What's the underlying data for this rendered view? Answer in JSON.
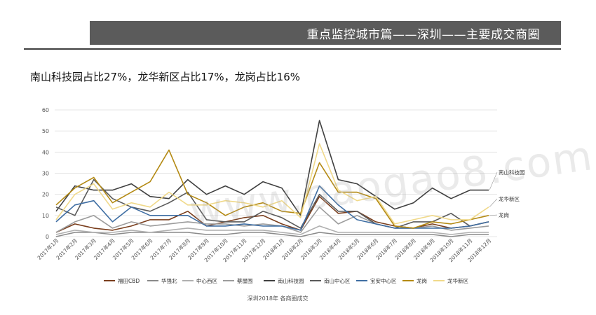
{
  "header": {
    "title": "重点监控城市篇——深圳——主要成交商圈"
  },
  "subtitle": "南山科技园占比27%，龙华新区占比17%，龙岗占比16%",
  "watermark": "www.baogao8.com",
  "chart_data": {
    "type": "line",
    "title": "",
    "caption": "深圳2018年 各商圈成交",
    "xlabel": "",
    "ylabel": "",
    "ylim": [
      0,
      60
    ],
    "yticks": [
      0,
      10,
      20,
      30,
      40,
      50,
      60
    ],
    "grid": true,
    "legend_position": "bottom",
    "categories": [
      "2017年1月",
      "2017年2月",
      "2017年3月",
      "2017年4月",
      "2017年5月",
      "2017年6月",
      "2017年7月",
      "2017年8月",
      "2017年9月",
      "2017年10月",
      "2017年11月",
      "2017年12月",
      "2018年1月",
      "2018年2月",
      "2018年3月",
      "2018年4月",
      "2018年5月",
      "2018年6月",
      "2018年7月",
      "2018年8月",
      "2018年9月",
      "2018年10月",
      "2018年11月",
      "2018年12月"
    ],
    "series": [
      {
        "name": "福田CBD",
        "color": "#7a3e1d",
        "values": [
          2,
          6,
          4,
          3,
          5,
          8,
          8,
          12,
          5,
          7,
          9,
          10,
          6,
          3,
          19,
          11,
          12,
          7,
          5,
          4,
          6,
          4,
          5,
          7
        ]
      },
      {
        "name": "华强北",
        "color": "#8a8a8a",
        "values": [
          0,
          2,
          2,
          1,
          2,
          2,
          2,
          2,
          1,
          1,
          2,
          2,
          1,
          0,
          2,
          1,
          1,
          1,
          1,
          1,
          1,
          0,
          1,
          1
        ]
      },
      {
        "name": "中心西区",
        "color": "#b0b0b0",
        "values": [
          1,
          3,
          2,
          2,
          3,
          2,
          3,
          4,
          3,
          3,
          3,
          3,
          2,
          1,
          5,
          2,
          2,
          2,
          2,
          2,
          2,
          1,
          2,
          2
        ]
      },
      {
        "name": "蔡屋围",
        "color": "#9c9c9c",
        "values": [
          2,
          7,
          10,
          4,
          7,
          5,
          6,
          7,
          6,
          6,
          5,
          6,
          5,
          2,
          14,
          6,
          10,
          6,
          4,
          4,
          5,
          3,
          4,
          5
        ]
      },
      {
        "name": "南山科技园",
        "color": "#404040",
        "values": [
          12,
          24,
          22,
          22,
          25,
          19,
          18,
          27,
          20,
          24,
          20,
          26,
          23,
          10,
          55,
          27,
          25,
          19,
          13,
          16,
          23,
          18,
          22,
          22
        ]
      },
      {
        "name": "南山中心区",
        "color": "#5a5a5a",
        "values": [
          14,
          10,
          27,
          18,
          14,
          12,
          16,
          21,
          8,
          7,
          7,
          12,
          9,
          4,
          20,
          12,
          12,
          6,
          4,
          7,
          7,
          11,
          5,
          7
        ]
      },
      {
        "name": "宝安中心区",
        "color": "#3f6ea3",
        "values": [
          7,
          15,
          17,
          7,
          14,
          10,
          10,
          10,
          5,
          5,
          6,
          5,
          5,
          3,
          24,
          15,
          8,
          6,
          4,
          4,
          4,
          4,
          5,
          7
        ]
      },
      {
        "name": "龙岗",
        "color": "#b48a14",
        "values": [
          15,
          23,
          28,
          16,
          21,
          26,
          41,
          20,
          16,
          10,
          14,
          16,
          12,
          11,
          35,
          21,
          21,
          18,
          5,
          4,
          7,
          6,
          8,
          10
        ]
      },
      {
        "name": "龙华新区",
        "color": "#f0d98a",
        "values": [
          8,
          20,
          25,
          13,
          16,
          14,
          21,
          15,
          15,
          17,
          16,
          14,
          17,
          9,
          44,
          22,
          17,
          19,
          6,
          8,
          10,
          8,
          8,
          14
        ]
      }
    ],
    "end_labels": [
      {
        "text": "南山科技园",
        "series": "南山科技园"
      },
      {
        "text": "龙华新区",
        "series": "龙华新区"
      },
      {
        "text": "龙岗",
        "series": "龙岗"
      }
    ]
  }
}
